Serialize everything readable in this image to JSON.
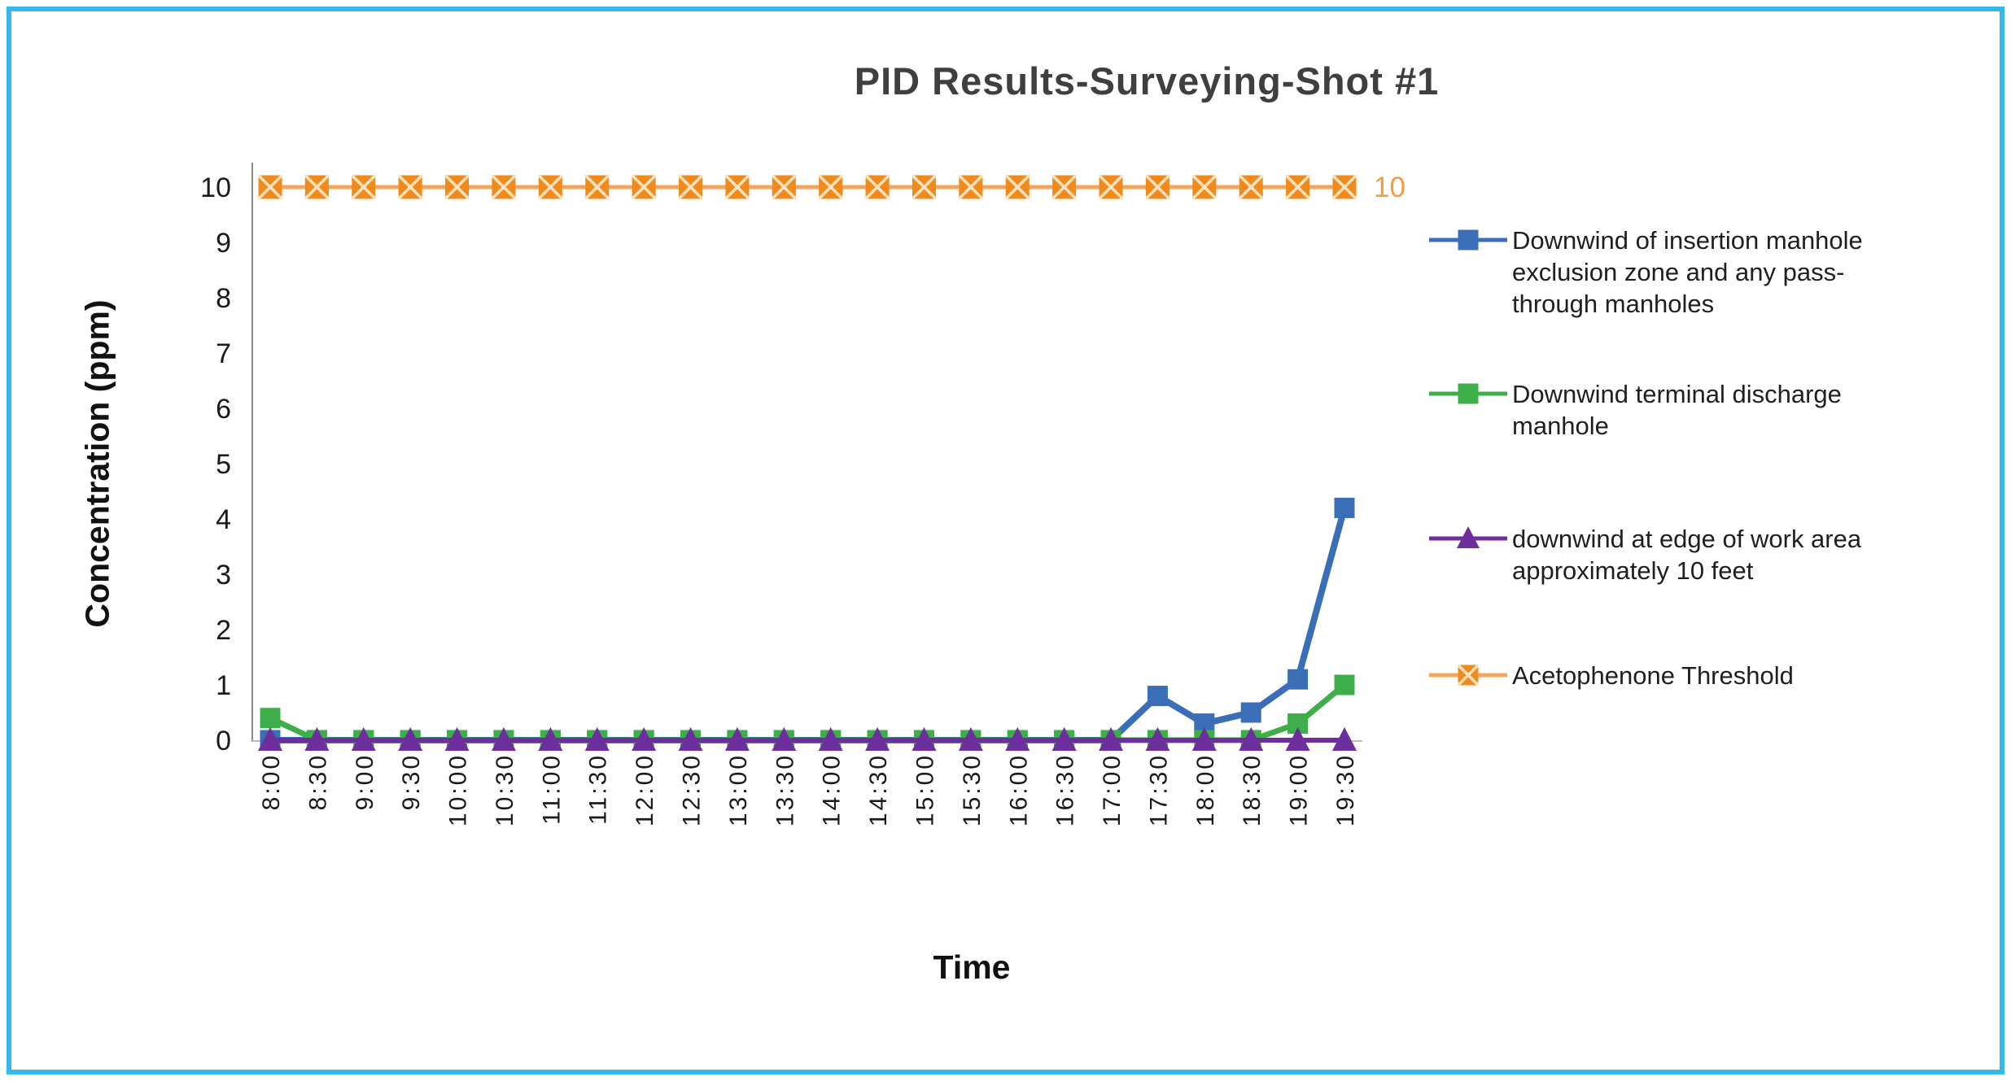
{
  "frame": {
    "border_color": "#35B9E9",
    "background": "#FFFFFF"
  },
  "chart_data": {
    "type": "line",
    "title": "PID Results-Surveying-Shot #1",
    "xlabel": "Time",
    "ylabel": "Concentration (ppm)",
    "ylim": [
      0,
      10
    ],
    "ytick_step": 1,
    "grid": false,
    "legend_position": "right",
    "categories": [
      "8:00",
      "8:30",
      "9:00",
      "9:30",
      "10:00",
      "10:30",
      "11:00",
      "11:30",
      "12:00",
      "12:30",
      "13:00",
      "13:30",
      "14:00",
      "14:30",
      "15:00",
      "15:30",
      "16:00",
      "16:30",
      "17:00",
      "17:30",
      "18:00",
      "18:30",
      "19:00",
      "19:30"
    ],
    "series": [
      {
        "name": "Downwind of insertion manhole exclusion zone and any pass-through manholes",
        "color": "#3A6FB7",
        "line_color": "#3A6FB7",
        "line_width": 8,
        "marker": "square",
        "marker_size": 24,
        "values": [
          0,
          0,
          0,
          0,
          0,
          0,
          0,
          0,
          0,
          0,
          0,
          0,
          0,
          0,
          0,
          0,
          0,
          0,
          0,
          0.8,
          0.3,
          0.5,
          1.1,
          4.2
        ]
      },
      {
        "name": "Downwind terminal discharge manhole",
        "color": "#3DAE49",
        "line_color": "#3DAE49",
        "line_width": 7,
        "marker": "square",
        "marker_size": 24,
        "values": [
          0.4,
          0,
          0,
          0,
          0,
          0,
          0,
          0,
          0,
          0,
          0,
          0,
          0,
          0,
          0,
          0,
          0,
          0,
          0,
          0,
          0,
          0,
          0.3,
          1
        ]
      },
      {
        "name": "downwind at edge of work area approximately 10 feet",
        "color": "#6E2F9E",
        "line_color": "#6E2F9E",
        "line_width": 6,
        "marker": "triangle",
        "marker_size": 26,
        "values": [
          0,
          0,
          0,
          0,
          0,
          0,
          0,
          0,
          0,
          0,
          0,
          0,
          0,
          0,
          0,
          0,
          0,
          0,
          0,
          0,
          0,
          0,
          0,
          0
        ]
      },
      {
        "name": "Acetophenone Threshold",
        "color": "#F08A1D",
        "line_color": "#F5A45B",
        "line_width": 5,
        "marker": "square-x",
        "marker_size": 28,
        "x_color": "#FFE3C0",
        "end_label": "10",
        "end_label_color": "#F59B3F",
        "values": [
          10,
          10,
          10,
          10,
          10,
          10,
          10,
          10,
          10,
          10,
          10,
          10,
          10,
          10,
          10,
          10,
          10,
          10,
          10,
          10,
          10,
          10,
          10,
          10
        ]
      }
    ]
  }
}
